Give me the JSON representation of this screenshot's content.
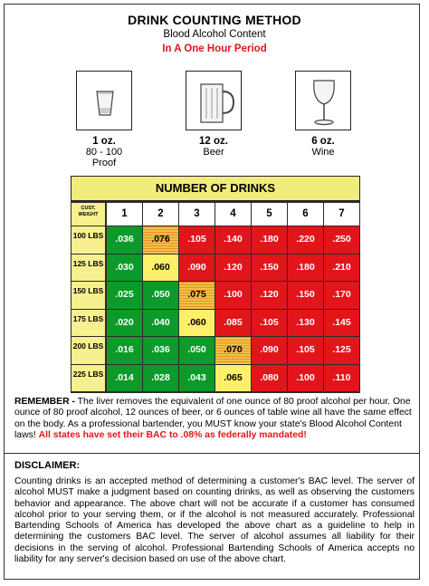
{
  "header": {
    "title": "DRINK COUNTING METHOD",
    "subtitle": "Blood Alcohol Content",
    "period": "In A One Hour Period"
  },
  "glasses": [
    {
      "icon": "shot-glass-icon",
      "amount": "1 oz.",
      "line2": "80 - 100",
      "line3": "Proof"
    },
    {
      "icon": "beer-mug-icon",
      "amount": "12 oz.",
      "line2": "Beer",
      "line3": ""
    },
    {
      "icon": "wine-glass-icon",
      "amount": "6 oz.",
      "line2": "Wine",
      "line3": ""
    }
  ],
  "table": {
    "title": "NUMBER OF DRINKS",
    "corner_label": "CUST. WEIGHT",
    "columns": [
      "1",
      "2",
      "3",
      "4",
      "5",
      "6",
      "7"
    ],
    "rows": [
      {
        "weight": "100 LBS",
        "values": [
          ".036",
          ".076",
          ".105",
          ".140",
          ".180",
          ".220",
          ".250"
        ],
        "colors": [
          "green",
          "stripe",
          "red",
          "red",
          "red",
          "red",
          "red"
        ]
      },
      {
        "weight": "125 LBS",
        "values": [
          ".030",
          ".060",
          ".090",
          ".120",
          ".150",
          ".180",
          ".210"
        ],
        "colors": [
          "green",
          "yellow",
          "red",
          "red",
          "red",
          "red",
          "red"
        ]
      },
      {
        "weight": "150 LBS",
        "values": [
          ".025",
          ".050",
          ".075",
          ".100",
          ".120",
          ".150",
          ".170"
        ],
        "colors": [
          "green",
          "green",
          "stripe",
          "red",
          "red",
          "red",
          "red"
        ]
      },
      {
        "weight": "175 LBS",
        "values": [
          ".020",
          ".040",
          ".060",
          ".085",
          ".105",
          ".130",
          ".145"
        ],
        "colors": [
          "green",
          "green",
          "yellow",
          "red",
          "red",
          "red",
          "red"
        ]
      },
      {
        "weight": "200 LBS",
        "values": [
          ".016",
          ".036",
          ".050",
          ".070",
          ".090",
          ".105",
          ".125"
        ],
        "colors": [
          "green",
          "green",
          "green",
          "stripe",
          "red",
          "red",
          "red"
        ]
      },
      {
        "weight": "225 LBS",
        "values": [
          ".014",
          ".028",
          ".043",
          ".065",
          ".080",
          ".100",
          ".110"
        ],
        "colors": [
          "green",
          "green",
          "green",
          "yellow",
          "red",
          "red",
          "red"
        ]
      }
    ]
  },
  "remember": {
    "label": "REMEMBER -",
    "body": "The liver removes the equivalent of one ounce of 80 proof alcohol per hour. One ounce of 80 proof alcohol, 12 ounces of beer, or 6 ounces of table wine all have the same effect on the body. As a professional bartender, you MUST know your state's Blood Alcohol Content laws!",
    "highlight": "All states have set their BAC to .08% as federally mandated!"
  },
  "disclaimer": {
    "title": "DISCLAIMER:",
    "body": "Counting drinks is an accepted method of determining a customer's BAC level. The server of alcohol MUST make a judgment based on counting drinks, as well as observing the customers behavior and appearance. The above chart will not be accurate if a customer has consumed alcohol prior to your serving them, or if the alcohol is not measured accurately. Professional Bartending Schools of America has developed the above chart as a guideline to help in determining the customers BAC level. The server of alcohol assumes all liability for their decisions in the serving of alcohol. Professional Bartending Schools of America accepts no liability for any server's decision based on use of the above chart."
  },
  "colors": {
    "green": "#0c9a2a",
    "yellow": "#fff06a",
    "red": "#e2151b",
    "header_yellow": "#f1eb7c"
  }
}
